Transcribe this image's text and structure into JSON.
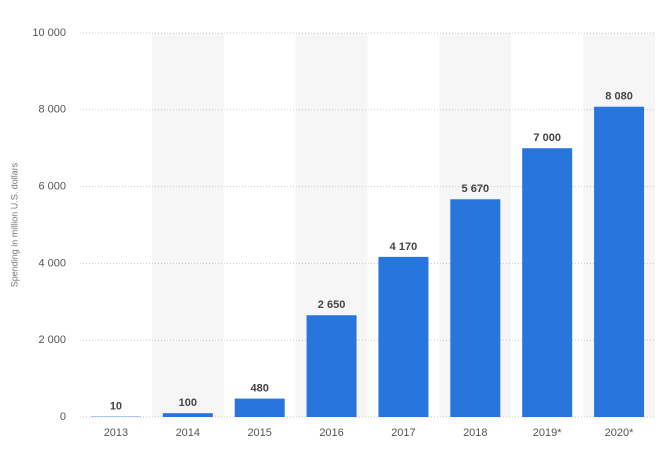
{
  "chart_data": {
    "type": "bar",
    "y_label": "Spending in million U.S. dollars",
    "categories": [
      "2013",
      "2014",
      "2015",
      "2016",
      "2017",
      "2018",
      "2019*",
      "2020*"
    ],
    "values": [
      10,
      100,
      480,
      2650,
      4170,
      5670,
      7000,
      8080
    ],
    "value_labels": [
      "10",
      "100",
      "480",
      "2 650",
      "4 170",
      "5 670",
      "7 000",
      "8 080"
    ],
    "color": "#2876dd",
    "ylim": [
      0,
      10000
    ],
    "yticks": [
      0,
      {
        "value": 2000,
        "label": "2 000"
      },
      {
        "value": 4000,
        "label": "4 000"
      },
      {
        "value": 6000,
        "label": "6 000"
      },
      {
        "value": 8000,
        "label": "8 000"
      },
      {
        "value": 10000,
        "label": "10 000"
      }
    ],
    "grid": true
  }
}
